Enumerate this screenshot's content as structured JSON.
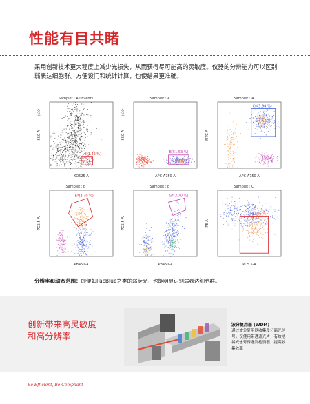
{
  "heading": "性能有目共睹",
  "intro": "采用创新技术更大程度上减少光损失，从而获得尽可能高的灵敏度。仪器的分辨能力可以区别弱表达细胞群。方便设门和统计计算，也使结果更准确。",
  "caption_bold": "分辨率和动态范围：",
  "caption_text": "即便如PacBlue之类的弱荧光，也能明显识别弱表达细胞群。",
  "slogan_line1": "创新带来高灵敏度",
  "slogan_line2": "和高分辨率",
  "wdm_title": "波分复用器 (WDM)",
  "wdm_desc": "通过波分复用器收集及分离光信号，仅使用带通滤光片，有效地将光信号传递到检测器，提高收集效率",
  "footer": "Be Efficient, Be Compliant",
  "colors": {
    "accent": "#d7262a",
    "band": "#f1f1f1"
  },
  "plots": [
    {
      "title": "Samplet : All Events",
      "xlabel": "KO525-A",
      "ylabel": "SSC-A",
      "yunit": "(x10⁴)",
      "gate": "E(1.46 %)"
    },
    {
      "title": "Samplet : A",
      "xlabel": "APC-A750-A",
      "ylabel": "SSC-A",
      "yunit": "(x10⁴)",
      "gate": "B(51.53 %)"
    },
    {
      "title": "Samplet : A",
      "xlabel": "APC-A750-A",
      "ylabel": "FITC-A",
      "yunit": "",
      "gate": "C(43.94 %)"
    },
    {
      "title": "Samplet : B",
      "xlabel": "PB450-A",
      "ylabel": "PC5.5-A",
      "yunit": "",
      "gate": "E*(3.70 %)"
    },
    {
      "title": "Samplet : B",
      "xlabel": "PB450-A",
      "ylabel": "PC5.5-A",
      "yunit": "",
      "gate": "G*(3.70 %)"
    },
    {
      "title": "Samplet : C",
      "xlabel": "PC5.5-A",
      "ylabel": "PE-A",
      "yunit": "",
      "gate": "F(7.05 %)"
    }
  ]
}
